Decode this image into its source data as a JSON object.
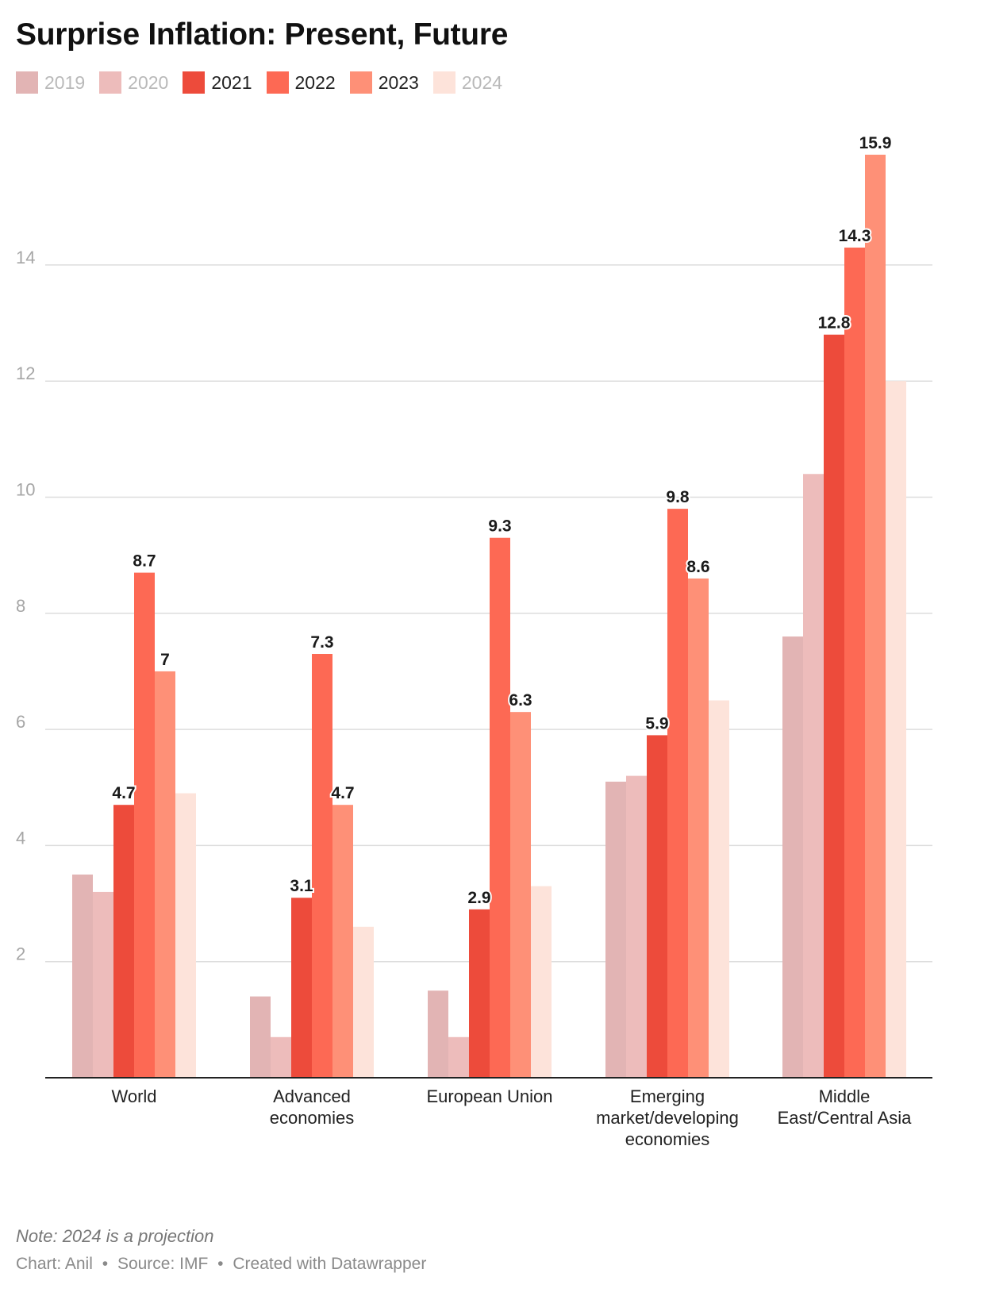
{
  "title": "Surprise Inflation: Present, Future",
  "note": "Note: 2024 is a projection",
  "credits": {
    "chart_by": "Chart: Anil",
    "source": "Source: IMF",
    "created_with": "Created with Datawrapper",
    "separator": "•"
  },
  "chart_data": {
    "type": "bar",
    "categories": [
      "World",
      "Advanced economies",
      "European Union",
      "Emerging market/developing economies",
      "Middle East/Central Asia"
    ],
    "category_lines": [
      [
        "World"
      ],
      [
        "Advanced",
        "economies"
      ],
      [
        "European Union"
      ],
      [
        "Emerging",
        "market/developing",
        "economies"
      ],
      [
        "Middle",
        "East/Central Asia"
      ]
    ],
    "series": [
      {
        "name": "2019",
        "color": "#e2b4b4",
        "labeled": false,
        "values": [
          3.5,
          1.4,
          1.5,
          5.1,
          7.6
        ]
      },
      {
        "name": "2020",
        "color": "#edbcbb",
        "labeled": false,
        "values": [
          3.2,
          0.7,
          0.7,
          5.2,
          10.4
        ]
      },
      {
        "name": "2021",
        "color": "#ed4b3b",
        "labeled": true,
        "values": [
          4.7,
          3.1,
          2.9,
          5.9,
          12.8
        ]
      },
      {
        "name": "2022",
        "color": "#fd6954",
        "labeled": true,
        "values": [
          8.7,
          7.3,
          9.3,
          9.8,
          14.3
        ]
      },
      {
        "name": "2023",
        "color": "#fe9077",
        "labeled": true,
        "values": [
          7.0,
          4.7,
          6.3,
          8.6,
          15.9
        ]
      },
      {
        "name": "2024",
        "color": "#fde3da",
        "labeled": false,
        "values": [
          4.9,
          2.6,
          3.3,
          6.5,
          12.0
        ]
      }
    ],
    "value_labels": [
      [
        "",
        "",
        "",
        "",
        ""
      ],
      [
        "",
        "",
        "",
        "",
        ""
      ],
      [
        "4.7",
        "3.1",
        "2.9",
        "5.9",
        "12.8"
      ],
      [
        "8.7",
        "7.3",
        "9.3",
        "9.8",
        "14.3"
      ],
      [
        "7",
        "4.7",
        "6.3",
        "8.6",
        "15.9"
      ],
      [
        "",
        "",
        "",
        "",
        ""
      ]
    ],
    "y_ticks": [
      2,
      4,
      6,
      8,
      10,
      12,
      14
    ],
    "ylim": [
      0,
      16.8
    ],
    "grid": true,
    "legend_position": "top-left",
    "xlabel": "",
    "ylabel": ""
  },
  "colors": {
    "grid": "#dddddd",
    "axis": "#222222",
    "tick_label": "#a6a6a6",
    "value_label": "#1a1a1a"
  }
}
